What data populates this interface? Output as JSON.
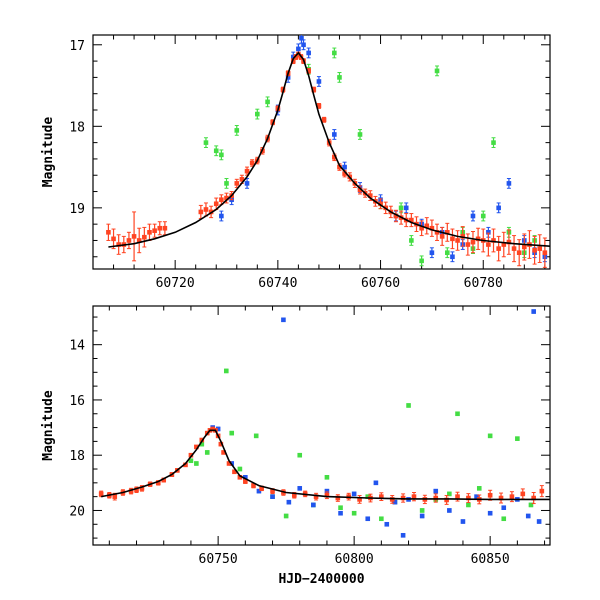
{
  "chart_data": [
    {
      "type": "scatter",
      "title": "",
      "xlabel": "",
      "ylabel": "Magnitude",
      "xlim": [
        60704,
        60793
      ],
      "ylim": [
        19.75,
        16.88
      ],
      "y_inverted": true,
      "grid": false,
      "legend": "none",
      "x_ticks": [
        60720,
        60740,
        60760,
        60780
      ],
      "y_ticks": [
        17,
        18,
        19
      ],
      "model": {
        "color": "#000000",
        "x": [
          60707,
          60712,
          60716,
          60720,
          60724,
          60728,
          60731,
          60734,
          60736,
          60738,
          60740,
          60741,
          60742,
          60743,
          60744,
          60745,
          60746,
          60747,
          60748,
          60750,
          60752,
          60755,
          60758,
          60762,
          60766,
          60770,
          60775,
          60780,
          60786,
          60793
        ],
        "y": [
          19.48,
          19.44,
          19.38,
          19.3,
          19.18,
          19.02,
          18.85,
          18.62,
          18.42,
          18.15,
          17.8,
          17.58,
          17.35,
          17.17,
          17.1,
          17.18,
          17.38,
          17.62,
          17.85,
          18.2,
          18.48,
          18.7,
          18.88,
          19.05,
          19.18,
          19.27,
          19.35,
          19.4,
          19.44,
          19.47
        ]
      },
      "series": [
        {
          "color": "#ff4422",
          "x": [
            60707,
            60708,
            60709,
            60710,
            60711,
            60712,
            60713,
            60714,
            60715,
            60716,
            60717,
            60718,
            60725,
            60726,
            60727,
            60728,
            60729,
            60730,
            60731,
            60732,
            60733,
            60734,
            60735,
            60736,
            60737,
            60738,
            60739,
            60740,
            60741,
            60742,
            60743,
            60743.5,
            60744,
            60744.5,
            60745,
            60746,
            60747,
            60748,
            60749,
            60750,
            60751,
            60752,
            60753,
            60754,
            60755,
            60756,
            60757,
            60758,
            60759,
            60760,
            60761,
            60762,
            60763,
            60764,
            60765,
            60766,
            60767,
            60768,
            60769,
            60770,
            60771,
            60772,
            60773,
            60774,
            60775,
            60776,
            60777,
            60778,
            60779,
            60780,
            60781,
            60782,
            60783,
            60784,
            60785,
            60786,
            60787,
            60788,
            60789,
            60790,
            60791,
            60792
          ],
          "y": [
            19.3,
            19.38,
            19.45,
            19.45,
            19.4,
            19.35,
            19.4,
            19.36,
            19.3,
            19.28,
            19.25,
            19.25,
            19.05,
            19.02,
            19.05,
            18.95,
            18.9,
            18.88,
            18.85,
            18.7,
            18.65,
            18.55,
            18.45,
            18.42,
            18.3,
            18.15,
            17.95,
            17.78,
            17.55,
            17.35,
            17.2,
            17.15,
            17.12,
            17.15,
            17.2,
            17.32,
            17.55,
            17.75,
            17.92,
            18.2,
            18.38,
            18.5,
            18.58,
            18.62,
            18.7,
            18.78,
            18.82,
            18.85,
            18.92,
            18.95,
            19.0,
            19.05,
            19.1,
            19.12,
            19.15,
            19.15,
            19.2,
            19.25,
            19.22,
            19.25,
            19.3,
            19.35,
            19.3,
            19.38,
            19.4,
            19.35,
            19.45,
            19.42,
            19.38,
            19.4,
            19.45,
            19.4,
            19.5,
            19.45,
            19.42,
            19.5,
            19.55,
            19.48,
            19.45,
            19.52,
            19.5,
            19.55
          ],
          "err": [
            0.1,
            0.12,
            0.12,
            0.1,
            0.1,
            0.3,
            0.15,
            0.12,
            0.1,
            0.08,
            0.08,
            0.08,
            0.08,
            0.08,
            0.07,
            0.07,
            0.06,
            0.06,
            0.05,
            0.05,
            0.05,
            0.05,
            0.04,
            0.04,
            0.04,
            0.04,
            0.03,
            0.03,
            0.03,
            0.03,
            0.03,
            0.03,
            0.03,
            0.03,
            0.03,
            0.03,
            0.03,
            0.03,
            0.03,
            0.04,
            0.04,
            0.04,
            0.04,
            0.05,
            0.05,
            0.05,
            0.05,
            0.06,
            0.06,
            0.06,
            0.07,
            0.07,
            0.07,
            0.08,
            0.08,
            0.08,
            0.09,
            0.09,
            0.1,
            0.1,
            0.1,
            0.11,
            0.11,
            0.12,
            0.12,
            0.12,
            0.13,
            0.13,
            0.13,
            0.14,
            0.14,
            0.14,
            0.15,
            0.15,
            0.15,
            0.16,
            0.16,
            0.16,
            0.17,
            0.17,
            0.17,
            0.18
          ]
        },
        {
          "color": "#2255ee",
          "x": [
            60729,
            60731,
            60734,
            60740,
            60742,
            60743,
            60744,
            60744.6,
            60745,
            60746,
            60748,
            60751,
            60753,
            60756,
            60760,
            60763,
            60765,
            60768,
            60770,
            60772,
            60774,
            60776,
            60778,
            60781,
            60783,
            60785,
            60788,
            60790,
            60792
          ],
          "y": [
            19.1,
            18.9,
            18.7,
            17.8,
            17.4,
            17.15,
            17.05,
            16.92,
            17.0,
            17.1,
            17.45,
            18.1,
            18.5,
            18.75,
            18.9,
            19.1,
            19.0,
            19.2,
            19.55,
            19.3,
            19.6,
            19.45,
            19.1,
            19.3,
            19.0,
            18.7,
            19.4,
            19.55,
            19.6
          ]
        },
        {
          "color": "#44dd44",
          "x": [
            60726,
            60728,
            60729,
            60730,
            60732,
            60736,
            60738,
            60746,
            60751,
            60752,
            60756,
            60760,
            60764,
            60766,
            60768,
            60771,
            60773,
            60776,
            60778,
            60780,
            60782,
            60785,
            60788,
            60790
          ],
          "y": [
            18.2,
            18.3,
            18.35,
            18.7,
            18.05,
            17.85,
            17.7,
            17.3,
            17.1,
            17.4,
            18.1,
            18.95,
            19.0,
            19.4,
            19.65,
            17.32,
            19.55,
            19.3,
            19.5,
            19.1,
            18.2,
            19.3,
            19.55,
            19.4
          ]
        }
      ]
    },
    {
      "type": "scatter",
      "title": "",
      "xlabel": "HJD−2400000",
      "ylabel": "Magnitude",
      "xlim": [
        60704,
        60872
      ],
      "ylim": [
        21.25,
        12.6
      ],
      "y_inverted": true,
      "grid": false,
      "legend": "none",
      "x_ticks": [
        60750,
        60800,
        60850
      ],
      "y_ticks": [
        14,
        16,
        18,
        20
      ],
      "model": {
        "color": "#000000",
        "x": [
          60707,
          60715,
          60722,
          60728,
          60733,
          60738,
          60742,
          60745,
          60747,
          60749,
          60751,
          60754,
          60758,
          60765,
          60775,
          60790,
          60805,
          60820,
          60835,
          60850,
          60865,
          60872
        ],
        "y": [
          19.5,
          19.35,
          19.15,
          18.95,
          18.7,
          18.3,
          17.8,
          17.35,
          17.1,
          17.1,
          17.5,
          18.2,
          18.75,
          19.1,
          19.35,
          19.5,
          19.55,
          19.58,
          19.58,
          19.6,
          19.6,
          19.6
        ]
      },
      "series": [
        {
          "color": "#ff4422",
          "x": [
            60707,
            60710,
            60712,
            60715,
            60718,
            60720,
            60722,
            60725,
            60728,
            60730,
            60733,
            60735,
            60738,
            60740,
            60742,
            60744,
            60746,
            60747,
            60748,
            60749,
            60750,
            60751,
            60752,
            60754,
            60756,
            60758,
            60760,
            60763,
            60766,
            60770,
            60774,
            60778,
            60782,
            60786,
            60790,
            60794,
            60798,
            60802,
            60806,
            60810,
            60814,
            60818,
            60822,
            60826,
            60830,
            60834,
            60838,
            60842,
            60846,
            60850,
            60854,
            60858,
            60862,
            60866,
            60869
          ],
          "y": [
            19.4,
            19.45,
            19.5,
            19.35,
            19.3,
            19.25,
            19.2,
            19.05,
            19.0,
            18.9,
            18.7,
            18.55,
            18.35,
            18.0,
            17.7,
            17.45,
            17.2,
            17.1,
            17.05,
            17.1,
            17.3,
            17.6,
            17.9,
            18.3,
            18.6,
            18.8,
            18.95,
            19.1,
            19.2,
            19.3,
            19.35,
            19.45,
            19.4,
            19.5,
            19.45,
            19.55,
            19.5,
            19.6,
            19.55,
            19.5,
            19.6,
            19.55,
            19.5,
            19.6,
            19.55,
            19.62,
            19.5,
            19.55,
            19.6,
            19.45,
            19.55,
            19.5,
            19.4,
            19.55,
            19.3
          ],
          "err": [
            0.1,
            0.1,
            0.12,
            0.1,
            0.1,
            0.1,
            0.1,
            0.08,
            0.08,
            0.07,
            0.07,
            0.06,
            0.05,
            0.05,
            0.05,
            0.04,
            0.04,
            0.04,
            0.04,
            0.04,
            0.04,
            0.04,
            0.05,
            0.05,
            0.06,
            0.06,
            0.07,
            0.08,
            0.08,
            0.09,
            0.1,
            0.1,
            0.1,
            0.12,
            0.12,
            0.12,
            0.12,
            0.14,
            0.14,
            0.14,
            0.14,
            0.15,
            0.15,
            0.15,
            0.15,
            0.16,
            0.16,
            0.16,
            0.16,
            0.18,
            0.18,
            0.18,
            0.18,
            0.2,
            0.2
          ]
        },
        {
          "color": "#2255ee",
          "x": [
            60748,
            60750,
            60755,
            60760,
            60765,
            60770,
            60774,
            60776,
            60780,
            60785,
            60790,
            60795,
            60800,
            60805,
            60808,
            60812,
            60815,
            60818,
            60820,
            60825,
            60830,
            60835,
            60840,
            60845,
            60850,
            60855,
            60860,
            60864,
            60866,
            60868
          ],
          "y": [
            17.0,
            17.05,
            18.3,
            18.8,
            19.3,
            19.5,
            13.1,
            19.7,
            19.2,
            19.8,
            19.3,
            20.1,
            19.4,
            20.3,
            19.0,
            20.5,
            19.7,
            20.9,
            19.6,
            20.2,
            19.3,
            20.0,
            20.4,
            19.5,
            20.1,
            19.9,
            19.6,
            20.2,
            12.8,
            20.4
          ]
        },
        {
          "color": "#44dd44",
          "x": [
            60740,
            60742,
            60744,
            60746,
            60753,
            60755,
            60758,
            60764,
            60770,
            60775,
            60780,
            60785,
            60790,
            60795,
            60800,
            60805,
            60810,
            60815,
            60820,
            60825,
            60830,
            60835,
            60838,
            60842,
            60846,
            60850,
            60855,
            60860,
            60865
          ],
          "y": [
            18.2,
            18.3,
            17.6,
            17.9,
            14.95,
            17.2,
            18.5,
            17.3,
            19.5,
            20.2,
            18.0,
            19.8,
            18.8,
            19.9,
            20.1,
            19.5,
            20.3,
            19.7,
            16.2,
            20.0,
            19.6,
            19.4,
            16.5,
            19.8,
            19.2,
            17.3,
            20.3,
            17.4,
            19.8
          ]
        }
      ]
    }
  ]
}
